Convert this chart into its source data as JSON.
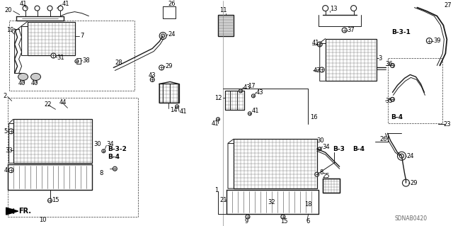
{
  "bg_color": "#ffffff",
  "diagram_color": "#1a1a1a",
  "watermark": "SDNAB0420",
  "fig_w": 6.4,
  "fig_h": 3.19,
  "dpi": 100
}
